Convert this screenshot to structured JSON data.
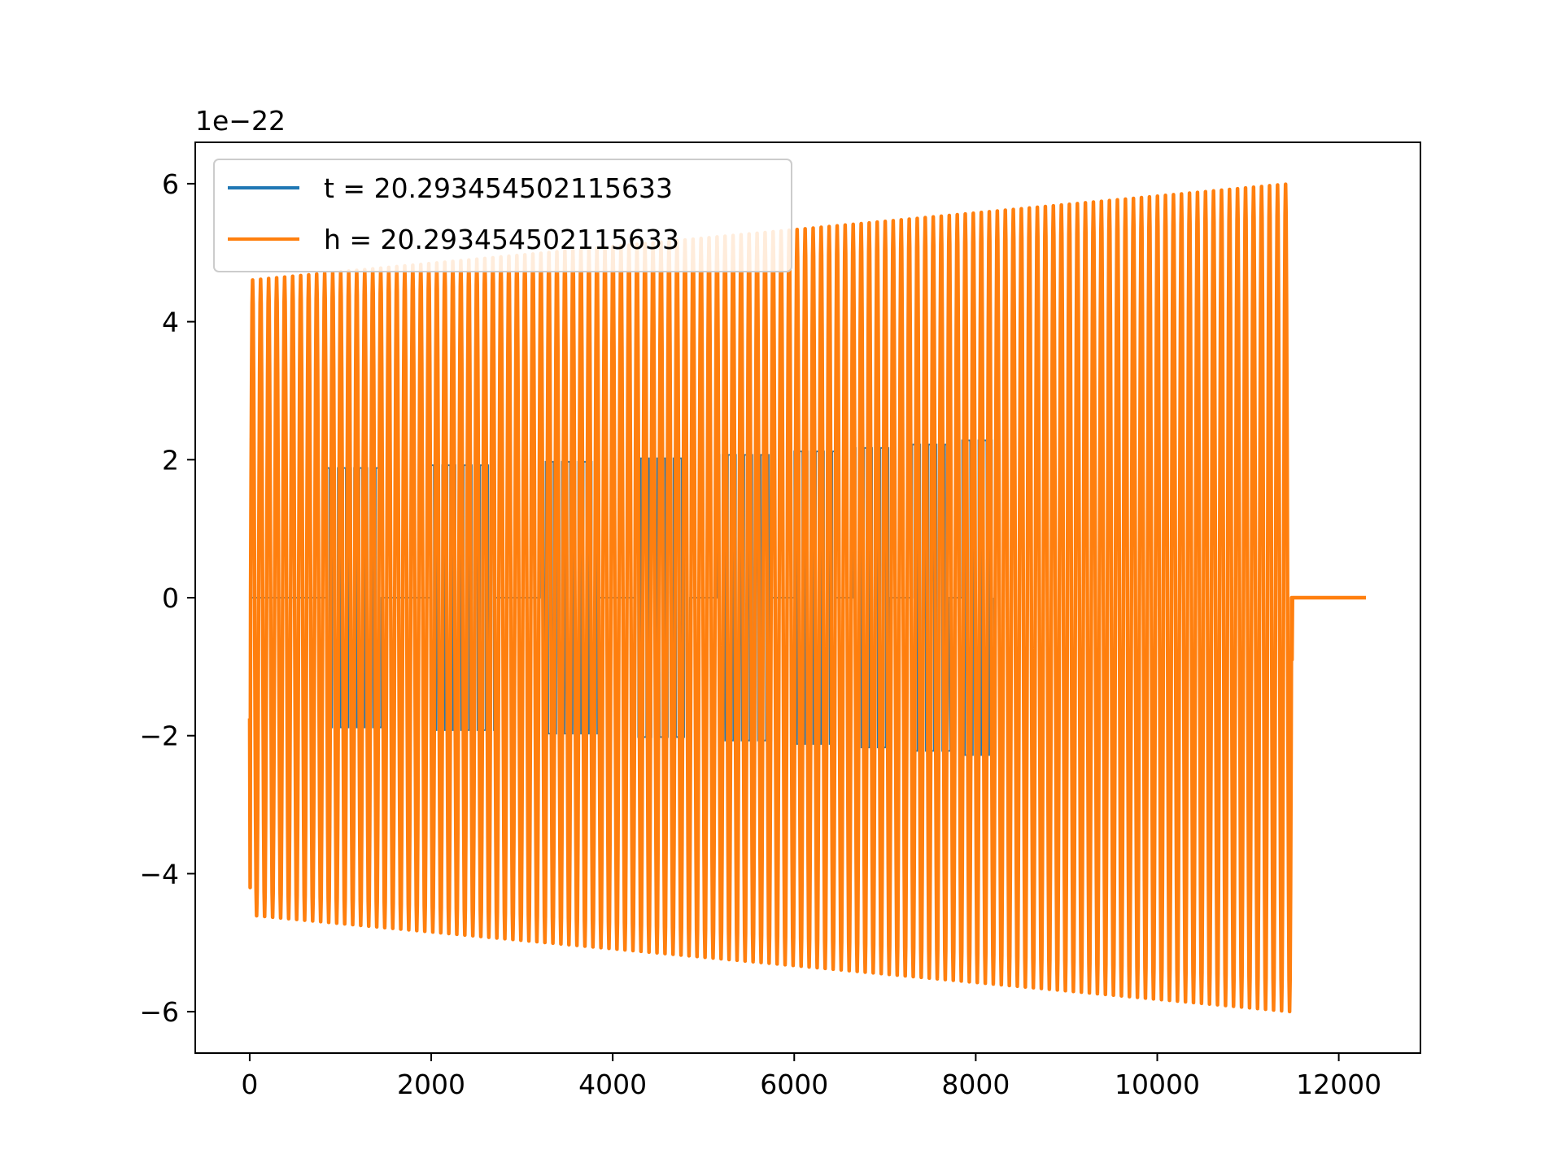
{
  "chart_data": {
    "type": "line",
    "title": "",
    "xlabel": "",
    "ylabel": "",
    "y_offset_label": "1e−22",
    "xlim": [
      -600,
      12900
    ],
    "ylim": [
      -6.6,
      6.6
    ],
    "x_ticks": [
      0,
      2000,
      4000,
      6000,
      8000,
      10000,
      12000
    ],
    "x_tick_labels": [
      "0",
      "2000",
      "4000",
      "6000",
      "8000",
      "10000",
      "12000"
    ],
    "y_ticks": [
      -6,
      -4,
      -2,
      0,
      2,
      4,
      6
    ],
    "y_tick_labels": [
      "−6",
      "−4",
      "−2",
      "0",
      "2",
      "4",
      "6"
    ],
    "grid": false,
    "legend_position": "upper-left",
    "series": [
      {
        "name": "t = 20.293454502115633",
        "color": "#1f77b4",
        "description_points": {
          "x_start": 0,
          "x_end": 8200,
          "initial_value": 2.3,
          "bursts": [
            {
              "x_start": 850,
              "x_end": 1450,
              "amplitude": 1.88
            },
            {
              "x_start": 2000,
              "x_end": 2700,
              "amplitude": 1.92
            },
            {
              "x_start": 3200,
              "x_end": 3850,
              "amplitude": 1.97
            },
            {
              "x_start": 4250,
              "x_end": 4850,
              "amplitude": 2.02
            },
            {
              "x_start": 5150,
              "x_end": 5750,
              "amplitude": 2.07
            },
            {
              "x_start": 6000,
              "x_end": 6450,
              "amplitude": 2.12
            },
            {
              "x_start": 6650,
              "x_end": 7050,
              "amplitude": 2.17
            },
            {
              "x_start": 7300,
              "x_end": 7700,
              "amplitude": 2.22
            },
            {
              "x_start": 7850,
              "x_end": 8200,
              "amplitude": 2.28
            }
          ]
        }
      },
      {
        "name": "h = 20.293454502115633",
        "color": "#ff7f0e",
        "description_points": {
          "x_start": 0,
          "x_osc_end": 11480,
          "x_end": 12300,
          "initial_value": -1.75,
          "initial_min": -4.2,
          "amplitude_start": 4.6,
          "amplitude_end": 6.0,
          "cycles": 130,
          "tail_value": 0,
          "final_value": -0.9
        }
      }
    ]
  }
}
